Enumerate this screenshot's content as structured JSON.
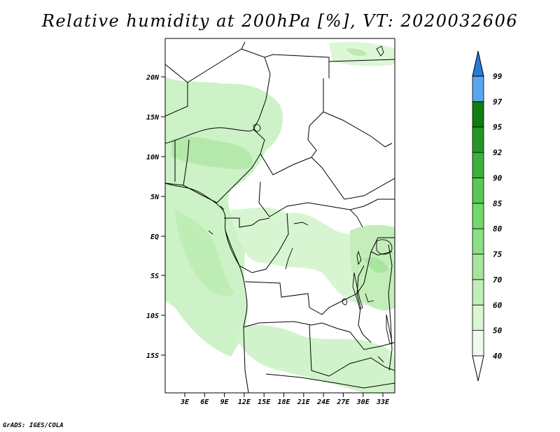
{
  "title": "Relative humidity at 200hPa [%], VT: 2020032606",
  "credit": "GrADS: IGES/COLA",
  "map": {
    "lat_labels": [
      "20N",
      "15N",
      "10N",
      "5N",
      "EQ",
      "5S",
      "10S",
      "15S"
    ],
    "lon_labels": [
      "3E",
      "6E",
      "9E",
      "12E",
      "15E",
      "18E",
      "21E",
      "24E",
      "27E",
      "30E",
      "33E"
    ]
  },
  "colorbar": {
    "levels": [
      "40",
      "50",
      "60",
      "70",
      "75",
      "80",
      "85",
      "90",
      "92",
      "95",
      "97",
      "99"
    ],
    "colors": [
      "#f0fbee",
      "#d9f5d3",
      "#c0eeb8",
      "#a6e69c",
      "#8cdf84",
      "#72d86c",
      "#59c755",
      "#3fb03e",
      "#279627",
      "#117d11",
      "#5aa5f0",
      "#2a7ad8",
      "#1c5fc0"
    ]
  }
}
